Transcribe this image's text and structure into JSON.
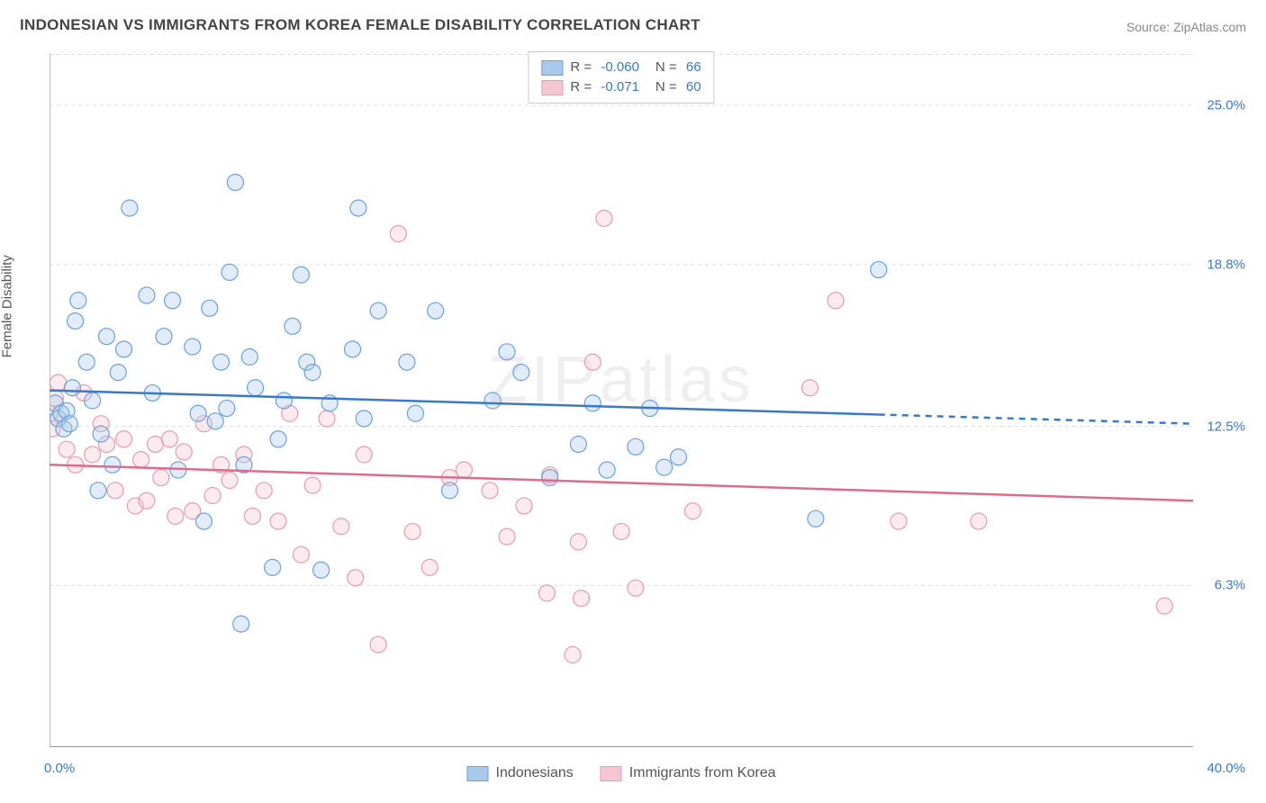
{
  "title": "INDONESIAN VS IMMIGRANTS FROM KOREA FEMALE DISABILITY CORRELATION CHART",
  "source_prefix": "Source: ",
  "source_name": "ZipAtlas.com",
  "ylabel": "Female Disability",
  "watermark": "ZIPatlas",
  "chart": {
    "type": "scatter",
    "background_color": "#ffffff",
    "grid_color": "#dddddd",
    "axis_color": "#999999",
    "tick_color": "#888888",
    "label_fontsize": 15,
    "label_color": "#3a79c8",
    "xlim": [
      0,
      40
    ],
    "ylim": [
      0,
      27
    ],
    "yticks": [
      6.3,
      12.5,
      18.8,
      25.0
    ],
    "ytick_labels": [
      "6.3%",
      "12.5%",
      "18.8%",
      "25.0%"
    ],
    "xtick_positions": [
      0,
      5,
      10,
      15,
      20,
      25,
      30,
      35,
      40
    ],
    "xmin_label": "0.0%",
    "xmax_label": "40.0%",
    "marker_radius": 9,
    "marker_stroke_width": 1.2,
    "marker_fill_opacity": 0.35,
    "series": [
      {
        "name": "Indonesians",
        "color_fill": "#a8c8ec",
        "color_stroke": "#6aa1dd",
        "R_label": "R =",
        "N_label": "N =",
        "R": "-0.060",
        "N": "66",
        "trend": {
          "y_at_x0": 13.9,
          "y_at_x40": 12.6,
          "solid_to_x": 29,
          "color": "#3a79c8",
          "width": 2.5
        },
        "points": [
          [
            0.2,
            13.4
          ],
          [
            0.3,
            12.8
          ],
          [
            0.4,
            13.0
          ],
          [
            0.5,
            12.4
          ],
          [
            0.6,
            13.1
          ],
          [
            0.7,
            12.6
          ],
          [
            0.8,
            14.0
          ],
          [
            0.9,
            16.6
          ],
          [
            1.0,
            17.4
          ],
          [
            1.3,
            15.0
          ],
          [
            1.5,
            13.5
          ],
          [
            1.7,
            10.0
          ],
          [
            1.8,
            12.2
          ],
          [
            2.0,
            16.0
          ],
          [
            2.2,
            11.0
          ],
          [
            2.4,
            14.6
          ],
          [
            2.6,
            15.5
          ],
          [
            2.8,
            21.0
          ],
          [
            3.4,
            17.6
          ],
          [
            3.6,
            13.8
          ],
          [
            4.0,
            16.0
          ],
          [
            4.3,
            17.4
          ],
          [
            4.5,
            10.8
          ],
          [
            5.0,
            15.6
          ],
          [
            5.2,
            13.0
          ],
          [
            5.4,
            8.8
          ],
          [
            5.6,
            17.1
          ],
          [
            5.8,
            12.7
          ],
          [
            6.0,
            15.0
          ],
          [
            6.2,
            13.2
          ],
          [
            6.3,
            18.5
          ],
          [
            6.5,
            22.0
          ],
          [
            6.7,
            4.8
          ],
          [
            6.8,
            11.0
          ],
          [
            7.0,
            15.2
          ],
          [
            7.2,
            14.0
          ],
          [
            7.8,
            7.0
          ],
          [
            8.0,
            12.0
          ],
          [
            8.2,
            13.5
          ],
          [
            8.5,
            16.4
          ],
          [
            8.8,
            18.4
          ],
          [
            9.0,
            15.0
          ],
          [
            9.2,
            14.6
          ],
          [
            9.5,
            6.9
          ],
          [
            9.8,
            13.4
          ],
          [
            10.6,
            15.5
          ],
          [
            10.8,
            21.0
          ],
          [
            11.0,
            12.8
          ],
          [
            11.5,
            17.0
          ],
          [
            12.5,
            15.0
          ],
          [
            12.8,
            13.0
          ],
          [
            13.5,
            17.0
          ],
          [
            14.0,
            10.0
          ],
          [
            15.5,
            13.5
          ],
          [
            16.0,
            15.4
          ],
          [
            16.5,
            14.6
          ],
          [
            17.5,
            10.5
          ],
          [
            18.5,
            11.8
          ],
          [
            19.0,
            13.4
          ],
          [
            19.5,
            10.8
          ],
          [
            20.5,
            11.7
          ],
          [
            21.0,
            13.2
          ],
          [
            21.5,
            10.9
          ],
          [
            22.0,
            11.3
          ],
          [
            26.8,
            8.9
          ],
          [
            29.0,
            18.6
          ]
        ]
      },
      {
        "name": "Immigrants from Korea",
        "color_fill": "#f4c6d2",
        "color_stroke": "#e89bb0",
        "R_label": "R =",
        "N_label": "N =",
        "R": "-0.071",
        "N": "60",
        "trend": {
          "y_at_x0": 11.0,
          "y_at_x40": 9.6,
          "solid_to_x": 40,
          "color": "#e06a8e",
          "width": 2.5
        },
        "points": [
          [
            0.0,
            13.0
          ],
          [
            0.1,
            12.4
          ],
          [
            0.2,
            13.6
          ],
          [
            0.3,
            14.2
          ],
          [
            0.6,
            11.6
          ],
          [
            0.9,
            11.0
          ],
          [
            1.2,
            13.8
          ],
          [
            1.5,
            11.4
          ],
          [
            1.8,
            12.6
          ],
          [
            2.0,
            11.8
          ],
          [
            2.3,
            10.0
          ],
          [
            2.6,
            12.0
          ],
          [
            3.0,
            9.4
          ],
          [
            3.2,
            11.2
          ],
          [
            3.4,
            9.6
          ],
          [
            3.7,
            11.8
          ],
          [
            3.9,
            10.5
          ],
          [
            4.2,
            12.0
          ],
          [
            4.4,
            9.0
          ],
          [
            4.7,
            11.5
          ],
          [
            5.0,
            9.2
          ],
          [
            5.4,
            12.6
          ],
          [
            5.7,
            9.8
          ],
          [
            6.0,
            11.0
          ],
          [
            6.3,
            10.4
          ],
          [
            6.8,
            11.4
          ],
          [
            7.1,
            9.0
          ],
          [
            7.5,
            10.0
          ],
          [
            8.0,
            8.8
          ],
          [
            8.4,
            13.0
          ],
          [
            8.8,
            7.5
          ],
          [
            9.2,
            10.2
          ],
          [
            9.7,
            12.8
          ],
          [
            10.2,
            8.6
          ],
          [
            10.7,
            6.6
          ],
          [
            11.0,
            11.4
          ],
          [
            11.5,
            4.0
          ],
          [
            12.2,
            20.0
          ],
          [
            12.7,
            8.4
          ],
          [
            13.3,
            7.0
          ],
          [
            14.0,
            10.5
          ],
          [
            14.5,
            10.8
          ],
          [
            15.4,
            10.0
          ],
          [
            16.0,
            8.2
          ],
          [
            16.6,
            9.4
          ],
          [
            17.4,
            6.0
          ],
          [
            17.5,
            10.6
          ],
          [
            18.3,
            3.6
          ],
          [
            18.5,
            8.0
          ],
          [
            18.6,
            5.8
          ],
          [
            19.0,
            15.0
          ],
          [
            19.4,
            20.6
          ],
          [
            20.0,
            8.4
          ],
          [
            20.5,
            6.2
          ],
          [
            22.5,
            9.2
          ],
          [
            26.6,
            14.0
          ],
          [
            27.5,
            17.4
          ],
          [
            29.7,
            8.8
          ],
          [
            32.5,
            8.8
          ],
          [
            39.0,
            5.5
          ]
        ]
      }
    ]
  },
  "legend_bottom": [
    {
      "label": "Indonesians",
      "fill": "#a8c8ec",
      "stroke": "#6aa1dd"
    },
    {
      "label": "Immigrants from Korea",
      "fill": "#f4c6d2",
      "stroke": "#e89bb0"
    }
  ]
}
